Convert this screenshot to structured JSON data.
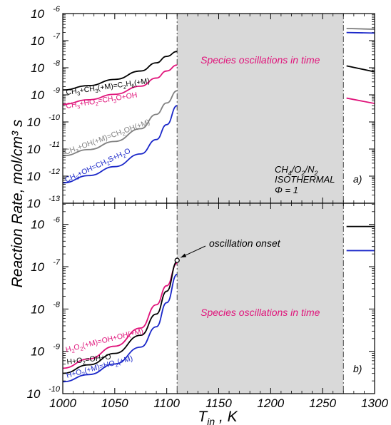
{
  "chart_data": [
    {
      "panel": "a)",
      "type": "line",
      "x_range": [
        1000,
        1300
      ],
      "y_scale": "log",
      "y_range_exp": [
        -13,
        -6
      ],
      "y_tick_exponents": [
        -13,
        -12,
        -11,
        -10,
        -9,
        -8,
        -7,
        -6
      ],
      "shaded_region": {
        "x": [
          1110,
          1270
        ],
        "label": "Species oscillations in time",
        "color": "#d9d9d9"
      },
      "conditions": [
        "CH4/O2/N2",
        "ISOTHERMAL",
        "Φ = 1"
      ],
      "series": [
        {
          "name": "CH3+CH3(+M)=C2H6(+M)",
          "color": "#000000",
          "x": [
            1000,
            1025,
            1050,
            1075,
            1090,
            1100,
            1110
          ],
          "log10_y": [
            -8.82,
            -8.66,
            -8.43,
            -8.12,
            -7.82,
            -7.58,
            -7.4
          ],
          "x_after": [
            1273,
            1300
          ],
          "log10_y_after": [
            -7.93,
            -8.15
          ]
        },
        {
          "name": "CH3+HO2=CH3O+OH",
          "color": "#e0137a",
          "x": [
            1000,
            1025,
            1050,
            1075,
            1090,
            1100,
            1110
          ],
          "log10_y": [
            -9.35,
            -9.18,
            -8.98,
            -8.68,
            -8.38,
            -8.12,
            -7.9
          ],
          "x_after": [
            1273,
            1300
          ],
          "log10_y_after": [
            -9.12,
            -9.32
          ]
        },
        {
          "name": "CH3+OH(+M)=CH2OH(+M)",
          "color": "#808080",
          "x": [
            1000,
            1025,
            1050,
            1075,
            1090,
            1100,
            1110
          ],
          "log10_y": [
            -11.25,
            -11.02,
            -10.72,
            -10.25,
            -9.72,
            -9.3,
            -8.85
          ],
          "x_after": [
            1273,
            1300
          ],
          "log10_y_after": [
            -6.55,
            -6.58
          ]
        },
        {
          "name": "CH3+OH=CH2S+H2O",
          "color": "#1a27c9",
          "x": [
            1000,
            1025,
            1050,
            1075,
            1090,
            1100,
            1110
          ],
          "log10_y": [
            -12.25,
            -11.98,
            -11.65,
            -11.18,
            -10.65,
            -10.1,
            -9.4
          ],
          "x_after": [
            1273,
            1300
          ],
          "log10_y_after": [
            -6.7,
            -6.72
          ]
        }
      ]
    },
    {
      "panel": "b)",
      "type": "line",
      "x_range": [
        1000,
        1300
      ],
      "y_scale": "log",
      "y_range_exp": [
        -10,
        -5.5
      ],
      "y_tick_exponents": [
        -10,
        -9,
        -8,
        -7,
        -6
      ],
      "x_tick_labels": [
        "1000",
        "1050",
        "1100",
        "1150",
        "1200",
        "1250",
        "1300"
      ],
      "shaded_region": {
        "x": [
          1110,
          1270
        ],
        "label": "Species oscillations in time",
        "color": "#d9d9d9"
      },
      "annotation": {
        "text": "oscillation onset",
        "x": 1110,
        "log10_y": -6.85
      },
      "series": [
        {
          "name": "H2O2(+M)=OH+OH(+M)",
          "color": "#e0137a",
          "x": [
            1000,
            1025,
            1050,
            1075,
            1090,
            1100,
            1110
          ],
          "log10_y": [
            -9.4,
            -9.18,
            -8.88,
            -8.45,
            -7.9,
            -7.45,
            -6.92
          ],
          "x_after": [],
          "log10_y_after": []
        },
        {
          "name": "H+O2=OH+O",
          "color": "#000000",
          "x": [
            1000,
            1025,
            1050,
            1075,
            1090,
            1100,
            1110
          ],
          "log10_y": [
            -9.52,
            -9.32,
            -9.05,
            -8.62,
            -8.12,
            -7.58,
            -6.88
          ],
          "x_after": [
            1273,
            1300
          ],
          "log10_y_after": [
            -6.05,
            -6.05
          ]
        },
        {
          "name": "H+O2(+M)=HO2(+M)",
          "color": "#1a27c9",
          "x": [
            1000,
            1025,
            1050,
            1075,
            1090,
            1100,
            1110
          ],
          "log10_y": [
            -9.72,
            -9.55,
            -9.3,
            -8.9,
            -8.42,
            -7.85,
            -7.18
          ],
          "x_after": [
            1273,
            1300
          ],
          "log10_y_after": [
            -6.62,
            -6.62
          ]
        }
      ]
    }
  ],
  "axes": {
    "xlabel_main": "T",
    "xlabel_sub": "in",
    "xlabel_unit": " , K",
    "ylabel": "Reaction Rate, mol/cm³ s",
    "tick_base": "10"
  }
}
